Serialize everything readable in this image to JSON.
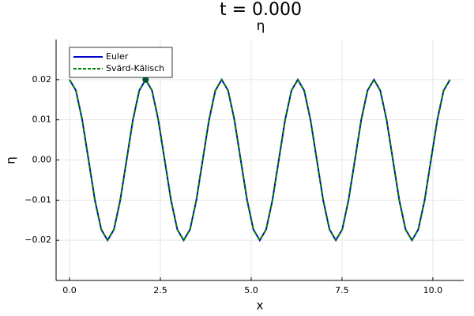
{
  "chart_data": {
    "type": "line",
    "title": "t = 0.000",
    "subtitle": "η",
    "x_label": "x",
    "y_label": "η",
    "xlim": [
      -0.37,
      10.85
    ],
    "ylim": [
      -0.03,
      0.03
    ],
    "xticks": [
      {
        "value": 0,
        "label": "0.0"
      },
      {
        "value": 2.5,
        "label": "2.5"
      },
      {
        "value": 5,
        "label": "5.0"
      },
      {
        "value": 7.5,
        "label": "7.5"
      },
      {
        "value": 10,
        "label": "10.0"
      }
    ],
    "yticks": [
      {
        "value": -0.02,
        "label": "−0.02"
      },
      {
        "value": -0.01,
        "label": "−0.01"
      },
      {
        "value": 0,
        "label": "0.00"
      },
      {
        "value": 0.01,
        "label": "0.01"
      },
      {
        "value": 0.02,
        "label": "0.02"
      }
    ],
    "grid": true,
    "legend": "top-left",
    "x": [
      0,
      0.175,
      0.349,
      0.524,
      0.698,
      0.873,
      1.047,
      1.222,
      1.396,
      1.571,
      1.745,
      1.92,
      2.094,
      2.269,
      2.443,
      2.618,
      2.793,
      2.967,
      3.142,
      3.316,
      3.491,
      3.665,
      3.84,
      4.014,
      4.189,
      4.363,
      4.538,
      4.712,
      4.887,
      5.061,
      5.236,
      5.411,
      5.585,
      5.76,
      5.934,
      6.109,
      6.283,
      6.458,
      6.632,
      6.807,
      6.981,
      7.156,
      7.33,
      7.505,
      7.679,
      7.854,
      8.029,
      8.203,
      8.378,
      8.552,
      8.727,
      8.901,
      9.076,
      9.25,
      9.425,
      9.599,
      9.774,
      9.948,
      10.123,
      10.297,
      10.472
    ],
    "series": [
      {
        "name": "Euler",
        "color": "#0000cd",
        "style": "solid",
        "values": [
          0.02,
          0.01732,
          0.01,
          0,
          -0.01,
          -0.01732,
          -0.02,
          -0.01732,
          -0.01,
          0,
          0.01,
          0.01732,
          0.02,
          0.01732,
          0.01,
          0,
          -0.01,
          -0.01732,
          -0.02,
          -0.01732,
          -0.01,
          0,
          0.01,
          0.01732,
          0.02,
          0.01732,
          0.01,
          0,
          -0.01,
          -0.01732,
          -0.02,
          -0.01732,
          -0.01,
          0,
          0.01,
          0.01732,
          0.02,
          0.01732,
          0.01,
          0,
          -0.01,
          -0.01732,
          -0.02,
          -0.01732,
          -0.01,
          0,
          0.01,
          0.01732,
          0.02,
          0.01732,
          0.01,
          0,
          -0.01,
          -0.01732,
          -0.02,
          -0.01732,
          -0.01,
          0,
          0.01,
          0.01732,
          0.02
        ]
      },
      {
        "name": "Svärd-Kälisch",
        "color": "#008000",
        "style": "dashed",
        "values": [
          0.02,
          0.01732,
          0.01,
          0,
          -0.01,
          -0.01732,
          -0.02,
          -0.01732,
          -0.01,
          0,
          0.01,
          0.01732,
          0.02,
          0.01732,
          0.01,
          0,
          -0.01,
          -0.01732,
          -0.02,
          -0.01732,
          -0.01,
          0,
          0.01,
          0.01732,
          0.02,
          0.01732,
          0.01,
          0,
          -0.01,
          -0.01732,
          -0.02,
          -0.01732,
          -0.01,
          0,
          0.01,
          0.01732,
          0.02,
          0.01732,
          0.01,
          0,
          -0.01,
          -0.01732,
          -0.02,
          -0.01732,
          -0.01,
          0,
          0.01,
          0.01732,
          0.02,
          0.01732,
          0.01,
          0,
          -0.01,
          -0.01732,
          -0.02,
          -0.01732,
          -0.01,
          0,
          0.01,
          0.01732,
          0.02
        ]
      }
    ],
    "marker": {
      "x": 2.094,
      "y": 0.02,
      "color": "#00503c"
    }
  }
}
